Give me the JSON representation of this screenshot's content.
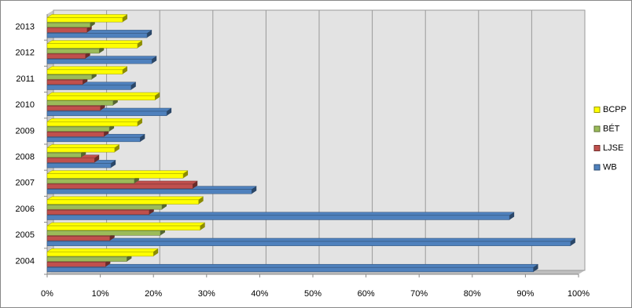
{
  "chart_data": {
    "type": "bar",
    "orientation": "horizontal",
    "categories": [
      "2004",
      "2005",
      "2006",
      "2007",
      "2008",
      "2009",
      "2010",
      "2011",
      "2012",
      "2013"
    ],
    "series": [
      {
        "name": "WB",
        "color": "#4f81bd",
        "values": [
          91.5,
          98.5,
          87,
          38.5,
          12,
          17.5,
          22.5,
          15.8,
          19.7,
          18.8
        ]
      },
      {
        "name": "LJSE",
        "color": "#c0504d",
        "values": [
          11,
          11.8,
          19.2,
          27.4,
          8.9,
          10.7,
          10,
          6.7,
          7.2,
          7.5
        ]
      },
      {
        "name": "BÉT",
        "color": "#9bbb59",
        "values": [
          15,
          21.3,
          21.6,
          16.4,
          6.4,
          11.7,
          12.4,
          8.4,
          9.8,
          8.1
        ]
      },
      {
        "name": "BCPP",
        "color": "#ffff00",
        "values": [
          20,
          28.8,
          28.5,
          25.6,
          12.7,
          17,
          20.3,
          14.2,
          17,
          14.2
        ]
      }
    ],
    "xlim": [
      0,
      100
    ],
    "xticks": [
      {
        "value": 0,
        "label": "0%"
      },
      {
        "value": 10,
        "label": "10%"
      },
      {
        "value": 20,
        "label": "20%"
      },
      {
        "value": 30,
        "label": "30%"
      },
      {
        "value": 40,
        "label": "40%"
      },
      {
        "value": 50,
        "label": "50%"
      },
      {
        "value": 60,
        "label": "60%"
      },
      {
        "value": 70,
        "label": "70%"
      },
      {
        "value": 80,
        "label": "80%"
      },
      {
        "value": 90,
        "label": "90%"
      },
      {
        "value": 100,
        "label": "100%"
      }
    ],
    "grid": true,
    "legend": "right"
  }
}
